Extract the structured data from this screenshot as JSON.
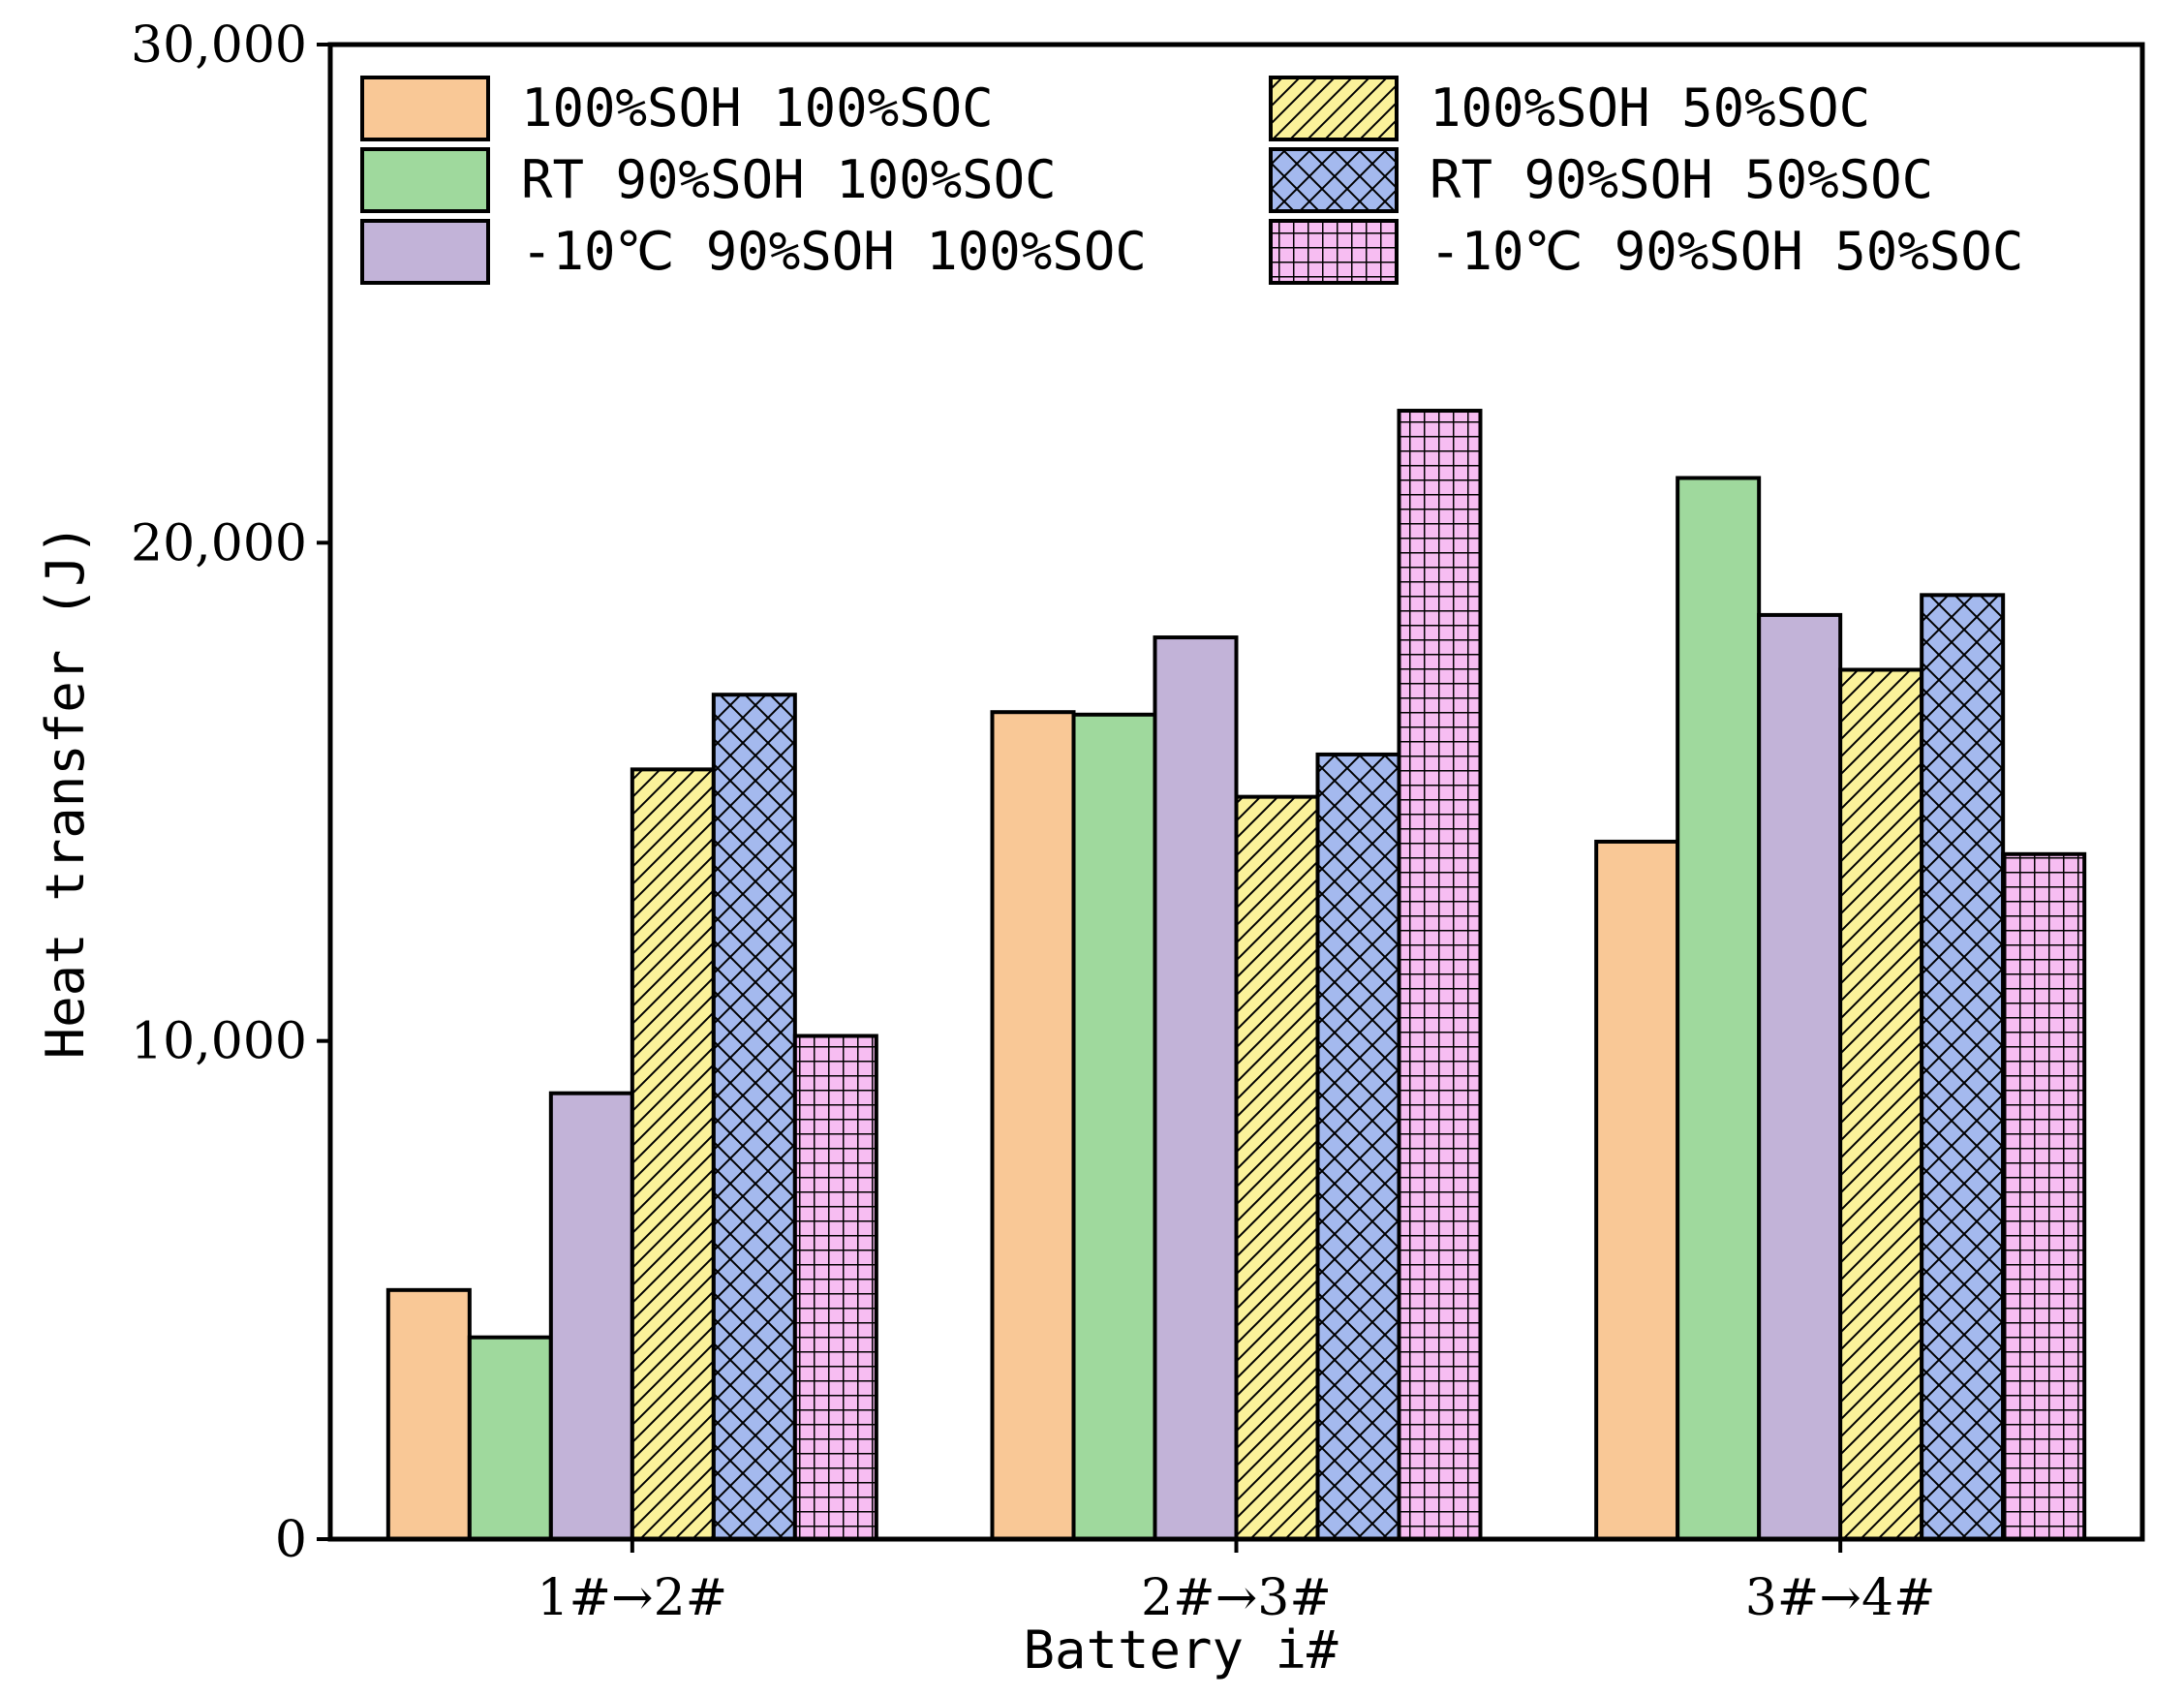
{
  "chart_data": {
    "type": "bar",
    "title": "",
    "xlabel": "Battery i#",
    "ylabel": "Heat transfer (J)",
    "ylim": [
      0,
      30000
    ],
    "yticks": [
      0,
      10000,
      20000,
      30000
    ],
    "ytick_labels": [
      "0",
      "10,000",
      "20,000",
      "30,000"
    ],
    "grid": false,
    "legend_position": "top",
    "categories": [
      "1#→2#",
      "2#→3#",
      "3#→4#"
    ],
    "series": [
      {
        "name": "100%SOH 100%SOC",
        "values": [
          5000,
          16600,
          14000
        ],
        "color": "#f9c896",
        "pattern": "none"
      },
      {
        "name": "RT 90%SOH 100%SOC",
        "values": [
          4050,
          16550,
          21300
        ],
        "color": "#9fd99d",
        "pattern": "none"
      },
      {
        "name": "-10℃ 90%SOH 100%SOC",
        "values": [
          8950,
          18100,
          18550
        ],
        "color": "#c2b3d8",
        "pattern": "none"
      },
      {
        "name": "100%SOH 50%SOC",
        "values": [
          15450,
          14900,
          17450
        ],
        "color": "#fbf29a",
        "pattern": "diagonal"
      },
      {
        "name": "RT 90%SOH 50%SOC",
        "values": [
          16950,
          15750,
          18950
        ],
        "color": "#a4b9ee",
        "pattern": "crosshatch"
      },
      {
        "name": "-10℃ 90%SOH 50%SOC",
        "values": [
          10100,
          22650,
          13750
        ],
        "color": "#f7bdf2",
        "pattern": "grid"
      }
    ]
  }
}
